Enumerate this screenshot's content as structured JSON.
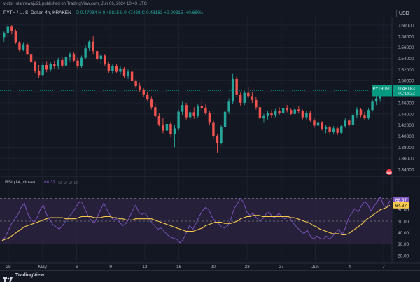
{
  "header": {
    "attribution": "victor_olanrewaju21 published on TradingView.com, Jun 06, 2024 10:43 UTC",
    "symbol": "PYTH / U. S. Dollar, 4h, KRAKEN",
    "ohlc": "O 0.47934  H 0.48815  L 0.47438  C 0.48183  +0.00315 (+0.66%)",
    "currency": "USD"
  },
  "price_axis": {
    "ticks": [
      "0.60000",
      "0.58000",
      "0.56000",
      "0.54000",
      "0.52000",
      "0.50000",
      "0.48000",
      "0.46000",
      "0.44000",
      "0.42000",
      "0.40000",
      "0.38000",
      "0.36000",
      "0.34000"
    ],
    "last_label": {
      "symbol": "PYTHUSD",
      "price": "0.48183",
      "countdown": "01:16:22"
    }
  },
  "rsi_panel": {
    "legend": "RSI (14, close)",
    "legend_value": "68.37",
    "legend_placeholders": "∅ ∅ ∅ ∅",
    "ticks": [
      "70.00",
      "60.00",
      "50.00",
      "40.00",
      "30.00",
      "20.00"
    ],
    "rsi_label": "68.37",
    "ma_label": "64.87"
  },
  "time_axis": {
    "labels": [
      "28",
      "May",
      "6",
      "9",
      "13",
      "16",
      "20",
      "23",
      "27",
      "Jun",
      "4",
      "7"
    ]
  },
  "footer": {
    "brand": "TradingView"
  },
  "colors": {
    "background": "#131722",
    "up": "#26a69a",
    "down": "#ef5350",
    "rsi_line": "#7e57c2",
    "rsi_ma": "#f7c948",
    "rsi_band": "#2a2240",
    "grid": "#1e222d",
    "last_price": "#089981"
  },
  "chart_data": {
    "type": "candlestick",
    "interval": "4h",
    "price_range": [
      0.33,
      0.615
    ],
    "candles": [
      {
        "o": 0.578,
        "h": 0.588,
        "l": 0.57,
        "c": 0.586
      },
      {
        "o": 0.586,
        "h": 0.603,
        "l": 0.581,
        "c": 0.598
      },
      {
        "o": 0.598,
        "h": 0.6,
        "l": 0.583,
        "c": 0.589
      },
      {
        "o": 0.589,
        "h": 0.592,
        "l": 0.566,
        "c": 0.569
      },
      {
        "o": 0.569,
        "h": 0.572,
        "l": 0.551,
        "c": 0.556
      },
      {
        "o": 0.556,
        "h": 0.569,
        "l": 0.553,
        "c": 0.565
      },
      {
        "o": 0.565,
        "h": 0.568,
        "l": 0.546,
        "c": 0.548
      },
      {
        "o": 0.548,
        "h": 0.552,
        "l": 0.53,
        "c": 0.533
      },
      {
        "o": 0.533,
        "h": 0.536,
        "l": 0.513,
        "c": 0.517
      },
      {
        "o": 0.517,
        "h": 0.528,
        "l": 0.505,
        "c": 0.51
      },
      {
        "o": 0.51,
        "h": 0.532,
        "l": 0.508,
        "c": 0.528
      },
      {
        "o": 0.528,
        "h": 0.535,
        "l": 0.515,
        "c": 0.52
      },
      {
        "o": 0.52,
        "h": 0.534,
        "l": 0.516,
        "c": 0.53
      },
      {
        "o": 0.53,
        "h": 0.536,
        "l": 0.522,
        "c": 0.526
      },
      {
        "o": 0.526,
        "h": 0.541,
        "l": 0.521,
        "c": 0.537
      },
      {
        "o": 0.537,
        "h": 0.542,
        "l": 0.523,
        "c": 0.527
      },
      {
        "o": 0.527,
        "h": 0.546,
        "l": 0.524,
        "c": 0.542
      },
      {
        "o": 0.542,
        "h": 0.552,
        "l": 0.535,
        "c": 0.548
      },
      {
        "o": 0.548,
        "h": 0.551,
        "l": 0.533,
        "c": 0.536
      },
      {
        "o": 0.536,
        "h": 0.541,
        "l": 0.522,
        "c": 0.526
      },
      {
        "o": 0.526,
        "h": 0.545,
        "l": 0.523,
        "c": 0.541
      },
      {
        "o": 0.541,
        "h": 0.563,
        "l": 0.538,
        "c": 0.558
      },
      {
        "o": 0.558,
        "h": 0.573,
        "l": 0.553,
        "c": 0.57
      },
      {
        "o": 0.57,
        "h": 0.58,
        "l": 0.548,
        "c": 0.553
      },
      {
        "o": 0.553,
        "h": 0.556,
        "l": 0.535,
        "c": 0.538
      },
      {
        "o": 0.538,
        "h": 0.549,
        "l": 0.53,
        "c": 0.545
      },
      {
        "o": 0.545,
        "h": 0.548,
        "l": 0.527,
        "c": 0.53
      },
      {
        "o": 0.53,
        "h": 0.534,
        "l": 0.514,
        "c": 0.518
      },
      {
        "o": 0.518,
        "h": 0.53,
        "l": 0.512,
        "c": 0.526
      },
      {
        "o": 0.526,
        "h": 0.53,
        "l": 0.513,
        "c": 0.516
      },
      {
        "o": 0.516,
        "h": 0.526,
        "l": 0.511,
        "c": 0.522
      },
      {
        "o": 0.522,
        "h": 0.524,
        "l": 0.505,
        "c": 0.508
      },
      {
        "o": 0.508,
        "h": 0.52,
        "l": 0.503,
        "c": 0.516
      },
      {
        "o": 0.516,
        "h": 0.519,
        "l": 0.496,
        "c": 0.499
      },
      {
        "o": 0.499,
        "h": 0.502,
        "l": 0.486,
        "c": 0.49
      },
      {
        "o": 0.49,
        "h": 0.497,
        "l": 0.48,
        "c": 0.484
      },
      {
        "o": 0.484,
        "h": 0.486,
        "l": 0.471,
        "c": 0.474
      },
      {
        "o": 0.474,
        "h": 0.48,
        "l": 0.463,
        "c": 0.466
      },
      {
        "o": 0.466,
        "h": 0.472,
        "l": 0.448,
        "c": 0.452
      },
      {
        "o": 0.452,
        "h": 0.458,
        "l": 0.433,
        "c": 0.436
      },
      {
        "o": 0.436,
        "h": 0.441,
        "l": 0.418,
        "c": 0.421
      },
      {
        "o": 0.421,
        "h": 0.432,
        "l": 0.405,
        "c": 0.41
      },
      {
        "o": 0.41,
        "h": 0.426,
        "l": 0.4,
        "c": 0.422
      },
      {
        "o": 0.422,
        "h": 0.425,
        "l": 0.398,
        "c": 0.404
      },
      {
        "o": 0.404,
        "h": 0.42,
        "l": 0.38,
        "c": 0.414
      },
      {
        "o": 0.414,
        "h": 0.448,
        "l": 0.41,
        "c": 0.444
      },
      {
        "o": 0.444,
        "h": 0.462,
        "l": 0.438,
        "c": 0.456
      },
      {
        "o": 0.456,
        "h": 0.46,
        "l": 0.43,
        "c": 0.434
      },
      {
        "o": 0.434,
        "h": 0.448,
        "l": 0.428,
        "c": 0.443
      },
      {
        "o": 0.443,
        "h": 0.452,
        "l": 0.431,
        "c": 0.436
      },
      {
        "o": 0.436,
        "h": 0.458,
        "l": 0.433,
        "c": 0.454
      },
      {
        "o": 0.454,
        "h": 0.466,
        "l": 0.446,
        "c": 0.45
      },
      {
        "o": 0.45,
        "h": 0.457,
        "l": 0.438,
        "c": 0.442
      },
      {
        "o": 0.442,
        "h": 0.446,
        "l": 0.42,
        "c": 0.424
      },
      {
        "o": 0.424,
        "h": 0.428,
        "l": 0.396,
        "c": 0.4
      },
      {
        "o": 0.4,
        "h": 0.404,
        "l": 0.37,
        "c": 0.388
      },
      {
        "o": 0.388,
        "h": 0.42,
        "l": 0.385,
        "c": 0.416
      },
      {
        "o": 0.416,
        "h": 0.448,
        "l": 0.412,
        "c": 0.444
      },
      {
        "o": 0.444,
        "h": 0.468,
        "l": 0.44,
        "c": 0.462
      },
      {
        "o": 0.462,
        "h": 0.512,
        "l": 0.458,
        "c": 0.503
      },
      {
        "o": 0.503,
        "h": 0.508,
        "l": 0.47,
        "c": 0.474
      },
      {
        "o": 0.474,
        "h": 0.48,
        "l": 0.455,
        "c": 0.46
      },
      {
        "o": 0.46,
        "h": 0.482,
        "l": 0.456,
        "c": 0.478
      },
      {
        "o": 0.478,
        "h": 0.488,
        "l": 0.468,
        "c": 0.472
      },
      {
        "o": 0.472,
        "h": 0.48,
        "l": 0.46,
        "c": 0.465
      },
      {
        "o": 0.465,
        "h": 0.471,
        "l": 0.448,
        "c": 0.452
      },
      {
        "o": 0.452,
        "h": 0.456,
        "l": 0.428,
        "c": 0.432
      },
      {
        "o": 0.432,
        "h": 0.44,
        "l": 0.424,
        "c": 0.436
      },
      {
        "o": 0.436,
        "h": 0.446,
        "l": 0.43,
        "c": 0.441
      },
      {
        "o": 0.441,
        "h": 0.447,
        "l": 0.433,
        "c": 0.437
      },
      {
        "o": 0.437,
        "h": 0.449,
        "l": 0.434,
        "c": 0.446
      },
      {
        "o": 0.446,
        "h": 0.452,
        "l": 0.438,
        "c": 0.442
      },
      {
        "o": 0.442,
        "h": 0.455,
        "l": 0.44,
        "c": 0.451
      },
      {
        "o": 0.451,
        "h": 0.456,
        "l": 0.443,
        "c": 0.447
      },
      {
        "o": 0.447,
        "h": 0.45,
        "l": 0.437,
        "c": 0.44
      },
      {
        "o": 0.44,
        "h": 0.452,
        "l": 0.436,
        "c": 0.448
      },
      {
        "o": 0.448,
        "h": 0.454,
        "l": 0.441,
        "c": 0.445
      },
      {
        "o": 0.445,
        "h": 0.448,
        "l": 0.43,
        "c": 0.434
      },
      {
        "o": 0.434,
        "h": 0.446,
        "l": 0.43,
        "c": 0.442
      },
      {
        "o": 0.442,
        "h": 0.445,
        "l": 0.425,
        "c": 0.428
      },
      {
        "o": 0.428,
        "h": 0.433,
        "l": 0.415,
        "c": 0.419
      },
      {
        "o": 0.419,
        "h": 0.428,
        "l": 0.412,
        "c": 0.424
      },
      {
        "o": 0.424,
        "h": 0.427,
        "l": 0.41,
        "c": 0.413
      },
      {
        "o": 0.413,
        "h": 0.42,
        "l": 0.405,
        "c": 0.416
      },
      {
        "o": 0.416,
        "h": 0.419,
        "l": 0.404,
        "c": 0.408
      },
      {
        "o": 0.408,
        "h": 0.418,
        "l": 0.403,
        "c": 0.414
      },
      {
        "o": 0.414,
        "h": 0.416,
        "l": 0.402,
        "c": 0.406
      },
      {
        "o": 0.406,
        "h": 0.42,
        "l": 0.404,
        "c": 0.418
      },
      {
        "o": 0.418,
        "h": 0.432,
        "l": 0.415,
        "c": 0.428
      },
      {
        "o": 0.428,
        "h": 0.431,
        "l": 0.416,
        "c": 0.42
      },
      {
        "o": 0.42,
        "h": 0.442,
        "l": 0.418,
        "c": 0.438
      },
      {
        "o": 0.438,
        "h": 0.452,
        "l": 0.432,
        "c": 0.448
      },
      {
        "o": 0.448,
        "h": 0.451,
        "l": 0.434,
        "c": 0.437
      },
      {
        "o": 0.437,
        "h": 0.444,
        "l": 0.428,
        "c": 0.432
      },
      {
        "o": 0.432,
        "h": 0.451,
        "l": 0.43,
        "c": 0.447
      },
      {
        "o": 0.447,
        "h": 0.466,
        "l": 0.444,
        "c": 0.462
      },
      {
        "o": 0.462,
        "h": 0.472,
        "l": 0.456,
        "c": 0.468
      },
      {
        "o": 0.468,
        "h": 0.478,
        "l": 0.462,
        "c": 0.474
      },
      {
        "o": 0.474,
        "h": 0.496,
        "l": 0.47,
        "c": 0.479
      },
      {
        "o": 0.479,
        "h": 0.488,
        "l": 0.474,
        "c": 0.482
      }
    ],
    "rsi": [
      33,
      36,
      42,
      48,
      52,
      56,
      62,
      66,
      57,
      52,
      49,
      53,
      60,
      64,
      56,
      51,
      47,
      45,
      43,
      46,
      50,
      54,
      57,
      61,
      66,
      67,
      61,
      55,
      51,
      48,
      54,
      60,
      66,
      60,
      55,
      51,
      52,
      49,
      46,
      48,
      53,
      59,
      64,
      58,
      56,
      57,
      53,
      49,
      46,
      43,
      44,
      41,
      38,
      36,
      35,
      34,
      31,
      34,
      40,
      46,
      43,
      48,
      54,
      59,
      62,
      60,
      54,
      50,
      48,
      45,
      44,
      46,
      52,
      61,
      65,
      70,
      66,
      58,
      55,
      57,
      53,
      50,
      52,
      56,
      58,
      54,
      53,
      57,
      54,
      52,
      55,
      51,
      47,
      44,
      41,
      39,
      42,
      37,
      34,
      37,
      35,
      34,
      37,
      34,
      37,
      40,
      43,
      38,
      44,
      53,
      57,
      61,
      58,
      63,
      67,
      65,
      59,
      63,
      67,
      71,
      64,
      62,
      68
    ],
    "rsi_ma": [
      33,
      34,
      35,
      37,
      39,
      41,
      43,
      45,
      46,
      47,
      48,
      49,
      50,
      51,
      52,
      53,
      53,
      53,
      53,
      53,
      52,
      52,
      52,
      52,
      53,
      54,
      54,
      54,
      54,
      53,
      53,
      53,
      54,
      54,
      54,
      53,
      53,
      52,
      52,
      51,
      51,
      51,
      52,
      52,
      52,
      52,
      52,
      52,
      51,
      50,
      49,
      48,
      47,
      46,
      45,
      44,
      43,
      42,
      41,
      41,
      41,
      42,
      43,
      44,
      46,
      47,
      48,
      49,
      49,
      49,
      48,
      48,
      48,
      49,
      50,
      52,
      53,
      54,
      54,
      55,
      55,
      55,
      54,
      54,
      54,
      54,
      54,
      54,
      54,
      54,
      54,
      53,
      53,
      52,
      51,
      50,
      49,
      48,
      46,
      45,
      43,
      42,
      41,
      40,
      39,
      39,
      39,
      38,
      38,
      39,
      41,
      43,
      45,
      47,
      50,
      52,
      54,
      56,
      58,
      60,
      61,
      62,
      64
    ]
  }
}
